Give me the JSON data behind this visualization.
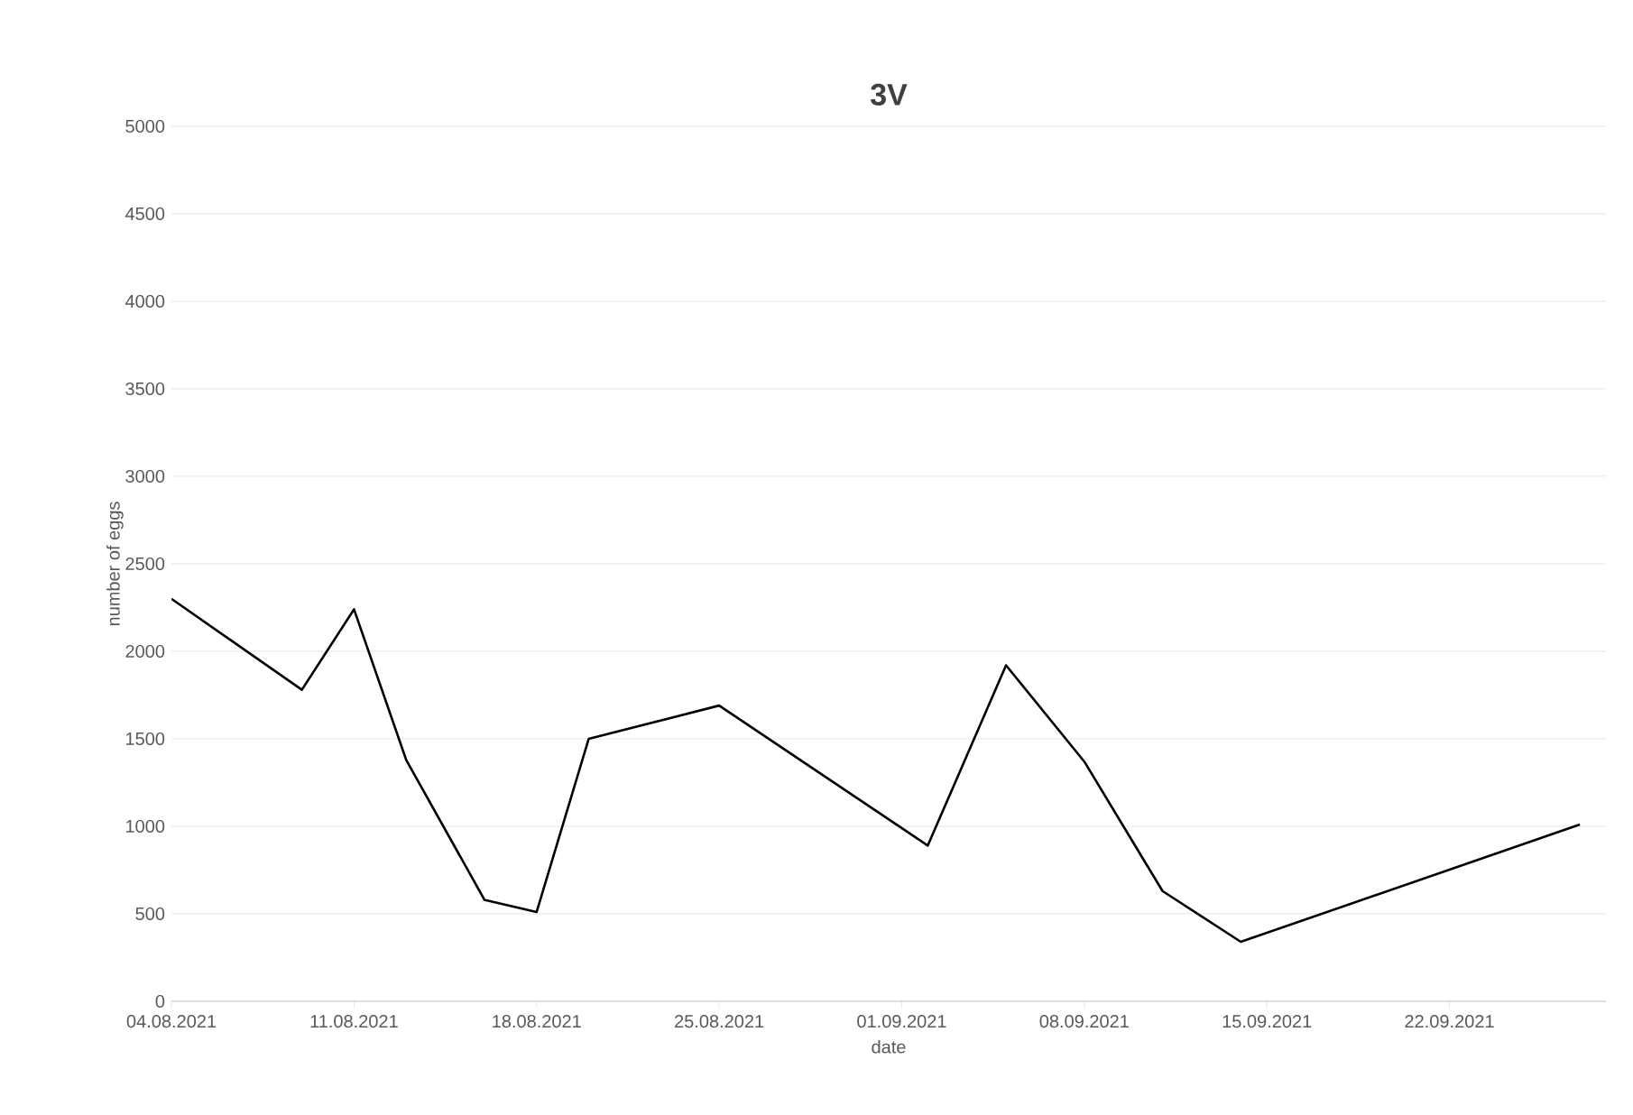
{
  "chart_data": {
    "type": "line",
    "title": "3V",
    "xlabel": "date",
    "ylabel": "number of eggs",
    "x": [
      "2021-08-04",
      "2021-08-09",
      "2021-08-11",
      "2021-08-13",
      "2021-08-16",
      "2021-08-18",
      "2021-08-20",
      "2021-08-25",
      "2021-09-02",
      "2021-09-05",
      "2021-09-08",
      "2021-09-11",
      "2021-09-14",
      "2021-09-27"
    ],
    "series": [
      {
        "color": "#000000",
        "values": [
          2300,
          1780,
          2240,
          1380,
          580,
          510,
          1500,
          1690,
          890,
          1920,
          1370,
          630,
          340,
          1010
        ]
      }
    ],
    "xlim": [
      "2021-08-04",
      "2021-09-28"
    ],
    "xticks": [
      {
        "value": "2021-08-04",
        "label": "04.08.2021"
      },
      {
        "value": "2021-08-11",
        "label": "11.08.2021"
      },
      {
        "value": "2021-08-18",
        "label": "18.08.2021"
      },
      {
        "value": "2021-08-25",
        "label": "25.08.2021"
      },
      {
        "value": "2021-09-01",
        "label": "01.09.2021"
      },
      {
        "value": "2021-09-08",
        "label": "08.09.2021"
      },
      {
        "value": "2021-09-15",
        "label": "15.09.2021"
      },
      {
        "value": "2021-09-22",
        "label": "22.09.2021"
      }
    ],
    "ylim": [
      0,
      5000
    ],
    "yticks": [
      0,
      500,
      1000,
      1500,
      2000,
      2500,
      3000,
      3500,
      4000,
      4500,
      5000
    ],
    "grid": "y",
    "marker": "none",
    "line_style": "solid"
  }
}
